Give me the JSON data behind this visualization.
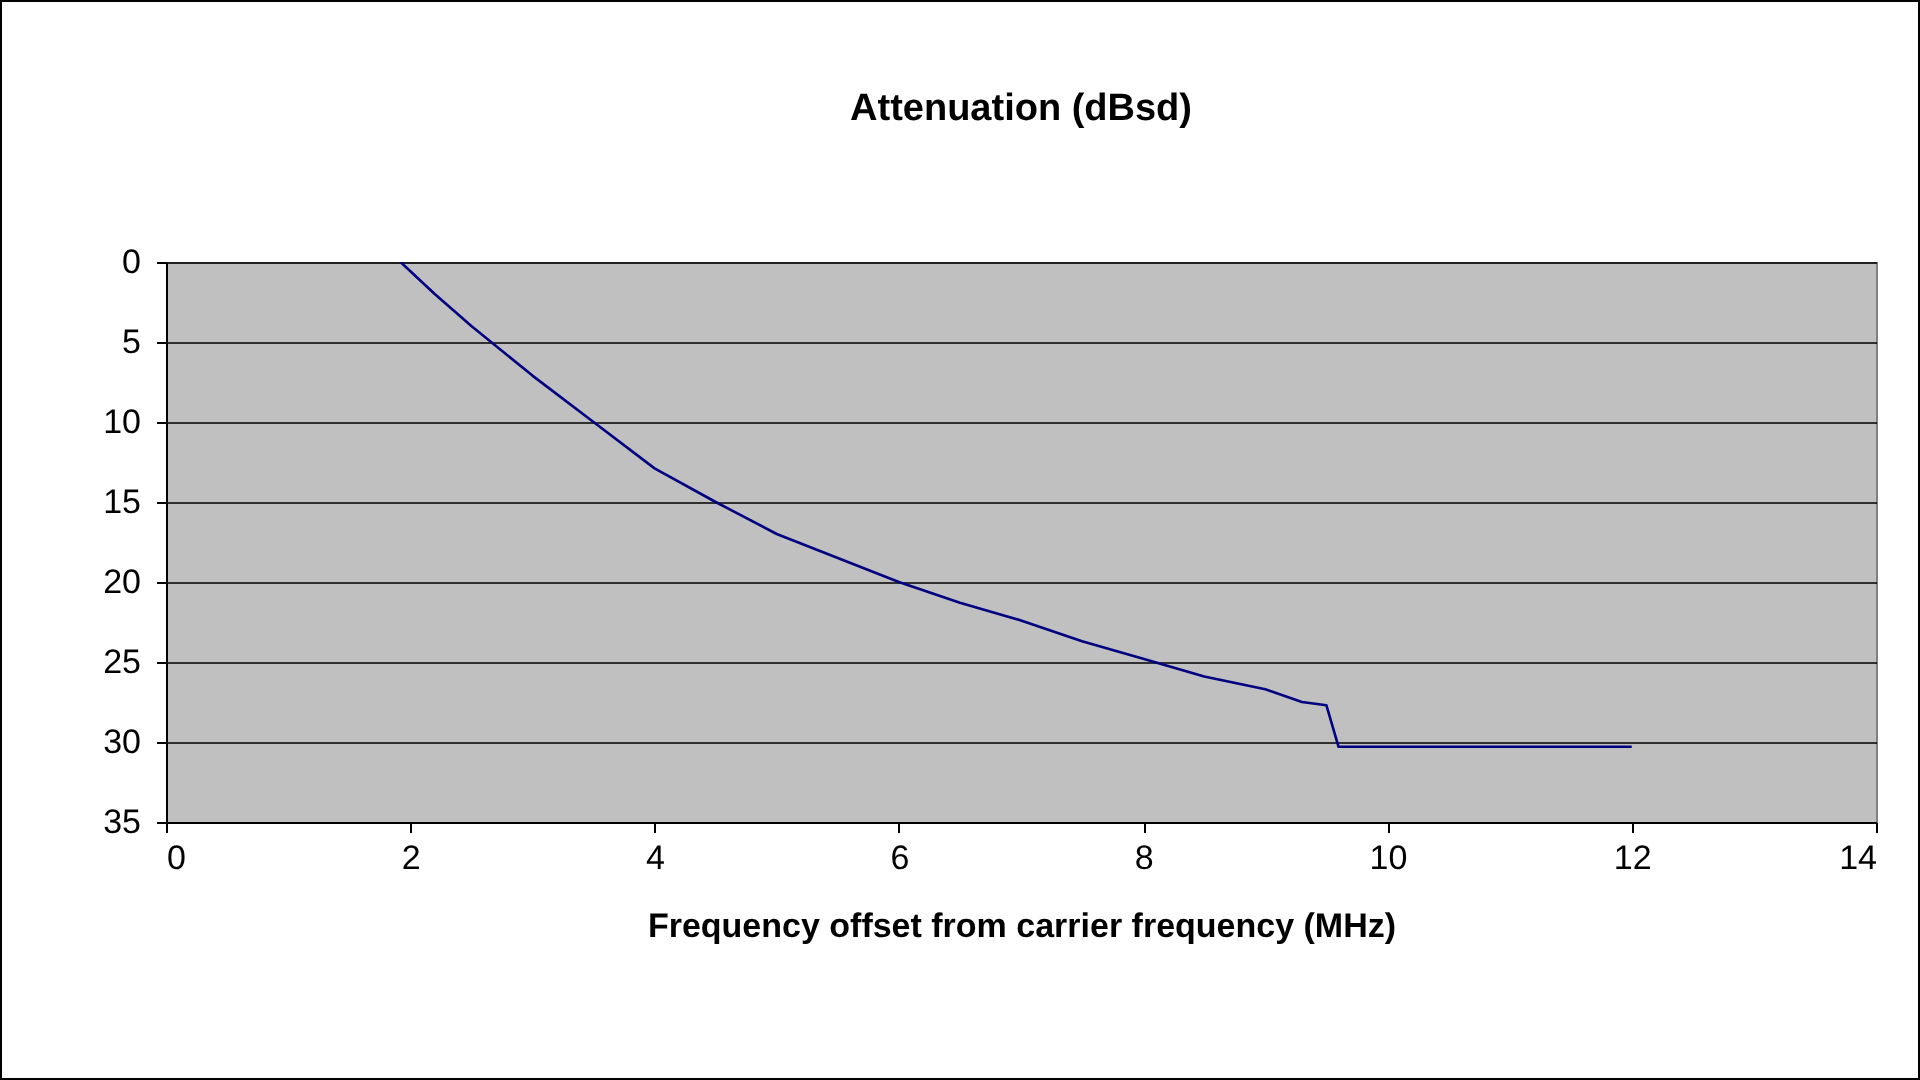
{
  "chart_data": {
    "type": "line",
    "title": "Attenuation (dBsd)",
    "xlabel": "Frequency offset from carrier frequency (MHz)",
    "x": [
      1.92,
      2.2,
      2.5,
      3,
      3.5,
      4,
      4.5,
      5,
      5.5,
      6,
      6.5,
      7,
      7.5,
      8,
      8.5,
      9,
      9.3,
      9.5,
      9.6,
      12
    ],
    "series": [
      {
        "color": "#000080",
        "values": [
          0,
          2,
          4,
          7.1,
          10,
          12.9,
          15,
          17,
          18.5,
          20,
          21.3,
          22.4,
          23.7,
          24.8,
          25.9,
          26.7,
          27.5,
          27.7,
          30.3,
          30.3
        ]
      }
    ],
    "xlim": [
      0,
      14
    ],
    "xticks": [
      0,
      2,
      4,
      6,
      8,
      10,
      12,
      14
    ],
    "ylim": [
      35,
      0
    ],
    "yticks": [
      0,
      5,
      10,
      15,
      20,
      25,
      30,
      35
    ],
    "grid": "y",
    "legend": false,
    "marker": "none",
    "line_style": "solid"
  }
}
